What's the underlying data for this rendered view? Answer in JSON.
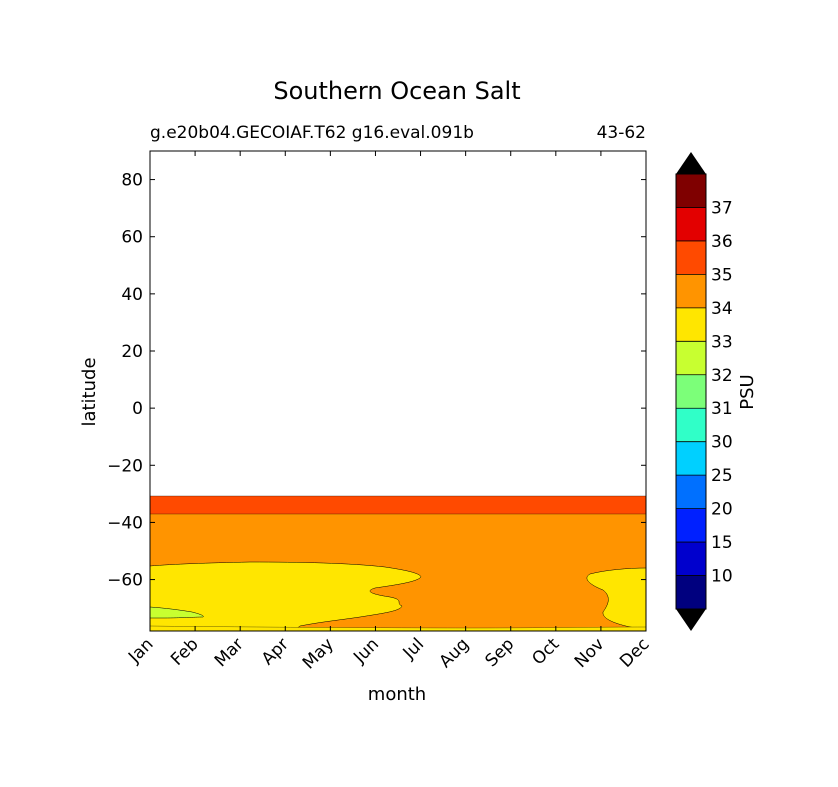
{
  "chart_data": {
    "type": "heatmap",
    "title": "Southern Ocean Salt",
    "subtitle_left": "g.e20b04.GECOIAF.T62 g16.eval.091b",
    "subtitle_right": "43-62",
    "xlabel": "month",
    "ylabel": "latitude",
    "x_categories": [
      "Jan",
      "Feb",
      "Mar",
      "Apr",
      "May",
      "Jun",
      "Jul",
      "Aug",
      "Sep",
      "Oct",
      "Nov",
      "Dec"
    ],
    "y_ticks": [
      80,
      60,
      40,
      20,
      0,
      -20,
      -40,
      -60
    ],
    "y_tick_labels": [
      "80",
      "60",
      "40",
      "20",
      "0",
      "−20",
      "−40",
      "−60"
    ],
    "ylim": [
      -78,
      90
    ],
    "colorbar": {
      "label": "PSU",
      "extend": "both",
      "levels": [
        10,
        15,
        20,
        25,
        30,
        31,
        32,
        33,
        34,
        35,
        36,
        37
      ],
      "level_labels": [
        "10",
        "15",
        "20",
        "25",
        "30",
        "31",
        "32",
        "33",
        "34",
        "35",
        "36",
        "37"
      ],
      "colors": [
        "#00007f",
        "#0000cd",
        "#0020ff",
        "#0070ff",
        "#00d0ff",
        "#30ffc8",
        "#7cff79",
        "#c8ff30",
        "#ffe600",
        "#ff9400",
        "#ff4a00",
        "#e30000",
        "#7f0000"
      ],
      "under_color": "#000000",
      "over_color": "#000000"
    },
    "regions": [
      {
        "name": "band-35-36",
        "lat_range": [
          -38,
          -32
        ],
        "psu_range": [
          35,
          36
        ],
        "color": "#ff4a00"
      },
      {
        "name": "band-34-35",
        "lat_range": [
          -78,
          -38
        ],
        "psu_range": [
          34,
          35
        ],
        "color": "#ff9400"
      },
      {
        "name": "band-33-34",
        "lat_range": [
          -78,
          -55
        ],
        "psu_range": [
          33,
          34
        ],
        "color": "#ffe600",
        "months": [
          "Jan",
          "Feb",
          "Mar",
          "Apr",
          "May",
          "Jun",
          "Jul",
          "Nov",
          "Dec"
        ]
      },
      {
        "name": "band-32-33",
        "lat_range": [
          -74,
          -71
        ],
        "psu_range": [
          32,
          33
        ],
        "color": "#c8ff30",
        "months": [
          "Jan",
          "Feb"
        ]
      }
    ],
    "grid": false
  }
}
